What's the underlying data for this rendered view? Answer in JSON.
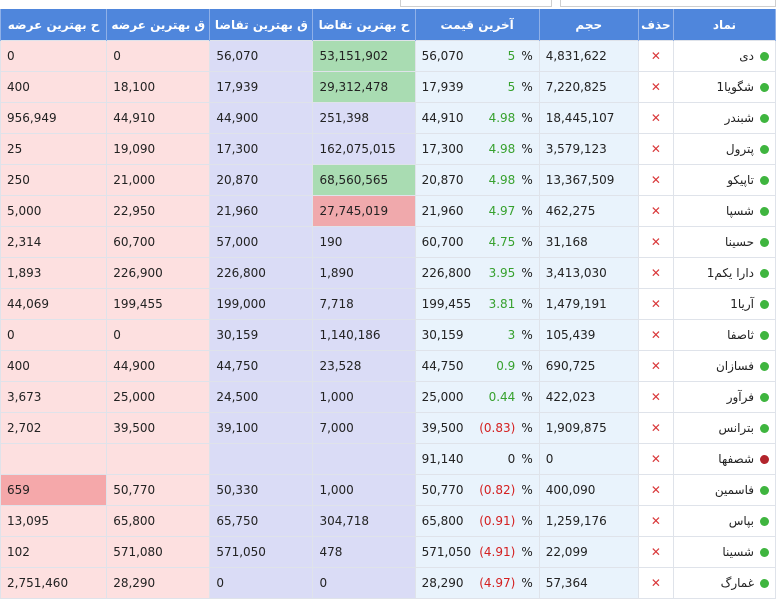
{
  "columns": {
    "symbol": "نماد",
    "del": "حذف",
    "volume": "حجم",
    "last_price": "آخرین قیمت",
    "bid_volume": "ح بهترین تقاضا",
    "bid_price": "ق بهترین تقاضا",
    "ask_price": "ق بهترین عرضه",
    "ask_volume": "ح بهترین عرضه"
  },
  "colors": {
    "header": "#4f86dc",
    "positive": "#37a12e",
    "negative": "#d42020",
    "delete": "#d9383a",
    "status_active": "#3fb53f",
    "status_stopped": "#b2242c"
  },
  "rows": [
    {
      "symbol": "دی",
      "status": "active",
      "del": "✕",
      "volume": "4,831,622",
      "last_price": "56,070",
      "pct": "5",
      "sign": "pos",
      "bid_volume": "53,151,902",
      "bid_hl": "green",
      "bid_price": "56,070",
      "ask_price": "0",
      "ask_volume": "0",
      "ask_hl": ""
    },
    {
      "symbol": "شگویا1",
      "status": "active",
      "del": "✕",
      "volume": "7,220,825",
      "last_price": "17,939",
      "pct": "5",
      "sign": "pos",
      "bid_volume": "29,312,478",
      "bid_hl": "green",
      "bid_price": "17,939",
      "ask_price": "18,100",
      "ask_volume": "400",
      "ask_hl": ""
    },
    {
      "symbol": "شبندر",
      "status": "active",
      "del": "✕",
      "volume": "18,445,107",
      "last_price": "44,910",
      "pct": "4.98",
      "sign": "pos",
      "bid_volume": "251,398",
      "bid_hl": "",
      "bid_price": "44,900",
      "ask_price": "44,910",
      "ask_volume": "956,949",
      "ask_hl": ""
    },
    {
      "symbol": "پترول",
      "status": "active",
      "del": "✕",
      "volume": "3,579,123",
      "last_price": "17,300",
      "pct": "4.98",
      "sign": "pos",
      "bid_volume": "162,075,015",
      "bid_hl": "",
      "bid_price": "17,300",
      "ask_price": "19,090",
      "ask_volume": "25",
      "ask_hl": ""
    },
    {
      "symbol": "تاپیکو",
      "status": "active",
      "del": "✕",
      "volume": "13,367,509",
      "last_price": "20,870",
      "pct": "4.98",
      "sign": "pos",
      "bid_volume": "68,560,565",
      "bid_hl": "green",
      "bid_price": "20,870",
      "ask_price": "21,000",
      "ask_volume": "250",
      "ask_hl": ""
    },
    {
      "symbol": "شسپا",
      "status": "active",
      "del": "✕",
      "volume": "462,275",
      "last_price": "21,960",
      "pct": "4.97",
      "sign": "pos",
      "bid_volume": "27,745,019",
      "bid_hl": "red",
      "bid_price": "21,960",
      "ask_price": "22,950",
      "ask_volume": "5,000",
      "ask_hl": ""
    },
    {
      "symbol": "حسینا",
      "status": "active",
      "del": "✕",
      "volume": "31,168",
      "last_price": "60,700",
      "pct": "4.75",
      "sign": "pos",
      "bid_volume": "190",
      "bid_hl": "",
      "bid_price": "57,000",
      "ask_price": "60,700",
      "ask_volume": "2,314",
      "ask_hl": ""
    },
    {
      "symbol": "دارا یکم1",
      "status": "active",
      "del": "✕",
      "volume": "3,413,030",
      "last_price": "226,800",
      "pct": "3.95",
      "sign": "pos",
      "bid_volume": "1,890",
      "bid_hl": "",
      "bid_price": "226,800",
      "ask_price": "226,900",
      "ask_volume": "1,893",
      "ask_hl": ""
    },
    {
      "symbol": "آریا1",
      "status": "active",
      "del": "✕",
      "volume": "1,479,191",
      "last_price": "199,455",
      "pct": "3.81",
      "sign": "pos",
      "bid_volume": "7,718",
      "bid_hl": "",
      "bid_price": "199,000",
      "ask_price": "199,455",
      "ask_volume": "44,069",
      "ask_hl": ""
    },
    {
      "symbol": "ثاصفا",
      "status": "active",
      "del": "✕",
      "volume": "105,439",
      "last_price": "30,159",
      "pct": "3",
      "sign": "pos",
      "bid_volume": "1,140,186",
      "bid_hl": "",
      "bid_price": "30,159",
      "ask_price": "0",
      "ask_volume": "0",
      "ask_hl": ""
    },
    {
      "symbol": "فسازان",
      "status": "active",
      "del": "✕",
      "volume": "690,725",
      "last_price": "44,750",
      "pct": "0.9",
      "sign": "pos",
      "bid_volume": "23,528",
      "bid_hl": "",
      "bid_price": "44,750",
      "ask_price": "44,900",
      "ask_volume": "400",
      "ask_hl": ""
    },
    {
      "symbol": "فرآور",
      "status": "active",
      "del": "✕",
      "volume": "422,023",
      "last_price": "25,000",
      "pct": "0.44",
      "sign": "pos",
      "bid_volume": "1,000",
      "bid_hl": "",
      "bid_price": "24,500",
      "ask_price": "25,000",
      "ask_volume": "3,673",
      "ask_hl": ""
    },
    {
      "symbol": "بترانس",
      "status": "active",
      "del": "✕",
      "volume": "1,909,875",
      "last_price": "39,500",
      "pct": "(0.83)",
      "sign": "neg",
      "bid_volume": "7,000",
      "bid_hl": "",
      "bid_price": "39,100",
      "ask_price": "39,500",
      "ask_volume": "2,702",
      "ask_hl": ""
    },
    {
      "symbol": "شصفها",
      "status": "stopped",
      "del": "✕",
      "volume": "0",
      "last_price": "91,140",
      "pct": "0",
      "sign": "zero",
      "bid_volume": "",
      "bid_hl": "",
      "bid_price": "",
      "ask_price": "",
      "ask_volume": "",
      "ask_hl": ""
    },
    {
      "symbol": "فاسمین",
      "status": "active",
      "del": "✕",
      "volume": "400,090",
      "last_price": "50,770",
      "pct": "(0.82)",
      "sign": "neg",
      "bid_volume": "1,000",
      "bid_hl": "",
      "bid_price": "50,330",
      "ask_price": "50,770",
      "ask_volume": "659",
      "ask_hl": "red"
    },
    {
      "symbol": "بپاس",
      "status": "active",
      "del": "✕",
      "volume": "1,259,176",
      "last_price": "65,800",
      "pct": "(0.91)",
      "sign": "neg",
      "bid_volume": "304,718",
      "bid_hl": "",
      "bid_price": "65,750",
      "ask_price": "65,800",
      "ask_volume": "13,095",
      "ask_hl": ""
    },
    {
      "symbol": "شسینا",
      "status": "active",
      "del": "✕",
      "volume": "22,099",
      "last_price": "571,050",
      "pct": "(4.91)",
      "sign": "neg",
      "bid_volume": "478",
      "bid_hl": "",
      "bid_price": "571,050",
      "ask_price": "571,080",
      "ask_volume": "102",
      "ask_hl": ""
    },
    {
      "symbol": "غمارگ",
      "status": "active",
      "del": "✕",
      "volume": "57,364",
      "last_price": "28,290",
      "pct": "(4.97)",
      "sign": "neg",
      "bid_volume": "0",
      "bid_hl": "",
      "bid_price": "0",
      "ask_price": "28,290",
      "ask_volume": "2,751,460",
      "ask_hl": ""
    }
  ],
  "pct_symbol": "%"
}
